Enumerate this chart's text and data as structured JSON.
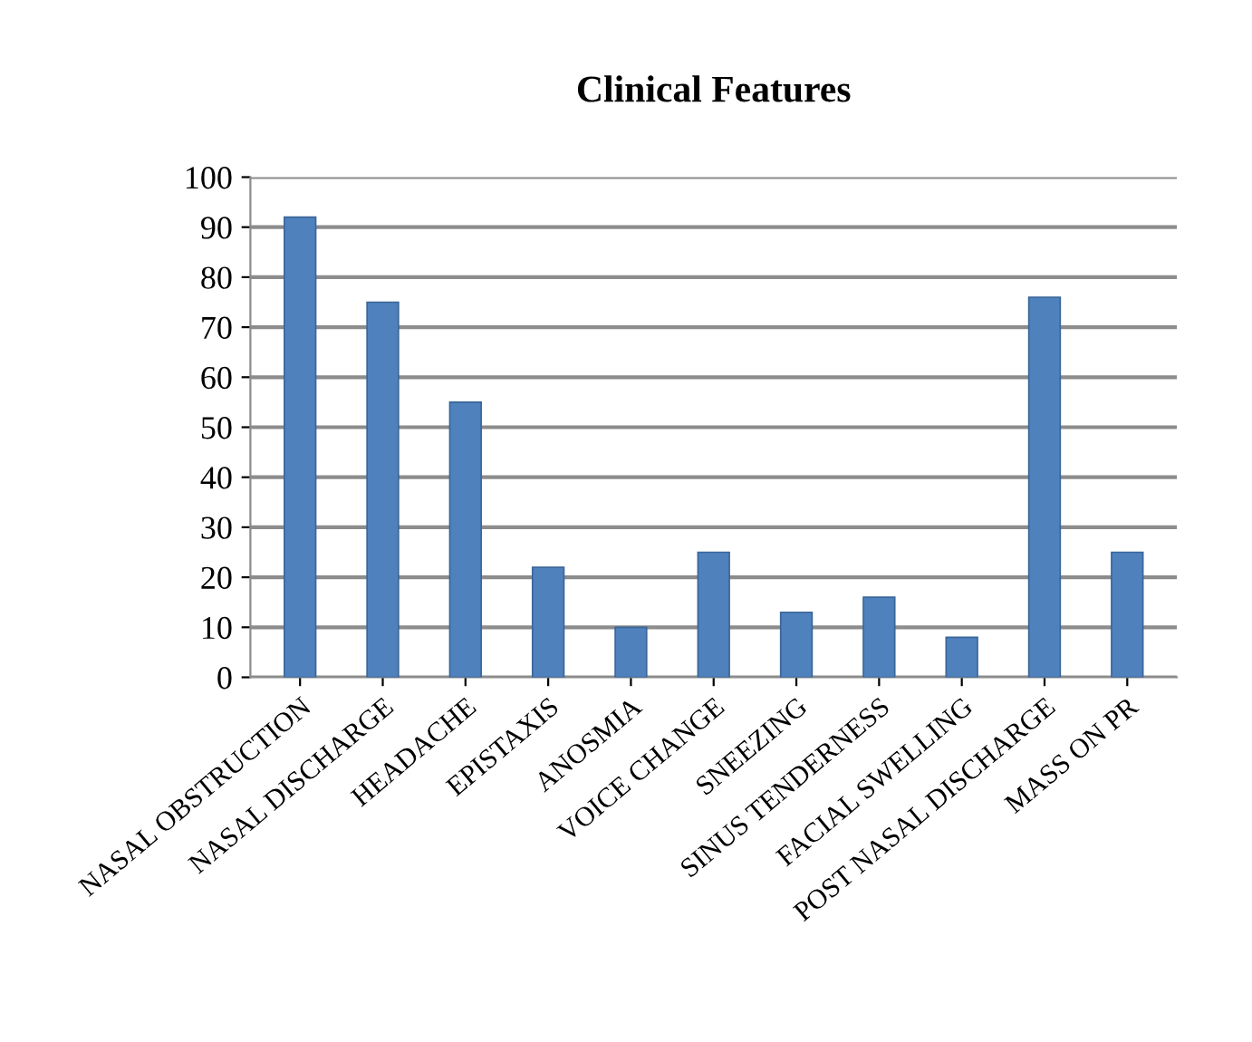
{
  "chart_data": {
    "type": "bar",
    "title": "Clinical Features",
    "categories": [
      "NASAL OBSTRUCTION",
      "NASAL DISCHARGE",
      "HEADACHE",
      "EPISTAXIS",
      "ANOSMIA",
      "VOICE CHANGE",
      "SNEEZING",
      "SINUS TENDERNESS",
      "FACIAL SWELLING",
      "POST NASAL DISCHARGE",
      "MASS ON PR"
    ],
    "values": [
      92,
      75,
      55,
      22,
      10,
      25,
      13,
      16,
      8,
      76,
      25
    ],
    "color": "#4f81bd",
    "ylim": [
      0,
      100
    ],
    "yticks": [
      0,
      10,
      20,
      30,
      40,
      50,
      60,
      70,
      80,
      90,
      100
    ],
    "grid": "y",
    "legend": false
  }
}
